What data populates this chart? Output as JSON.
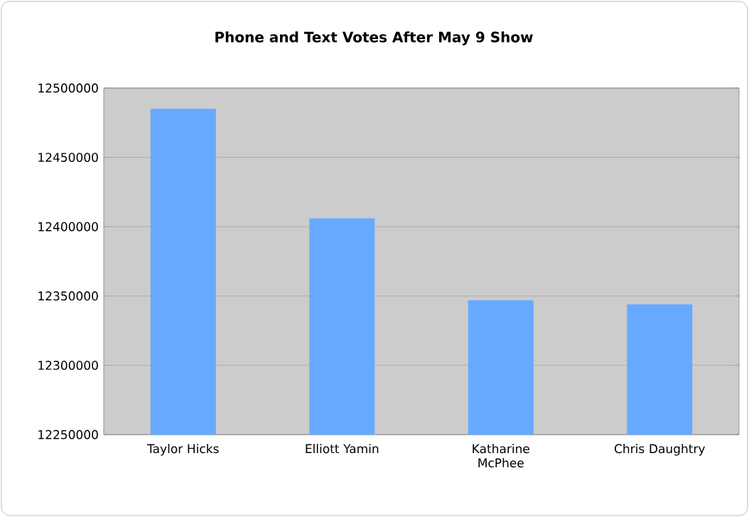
{
  "chart_data": {
    "type": "bar",
    "title": "Phone and Text Votes After May 9 Show",
    "categories": [
      "Taylor Hicks",
      "Elliott Yamin",
      "Katharine McPhee",
      "Chris Daughtry"
    ],
    "values": [
      12485000,
      12406000,
      12347000,
      12344000
    ],
    "color": "#66aaff",
    "ylim": [
      12250000,
      12500000
    ],
    "yticks": [
      12250000,
      12300000,
      12350000,
      12400000,
      12450000,
      12500000
    ],
    "grid": "y"
  }
}
